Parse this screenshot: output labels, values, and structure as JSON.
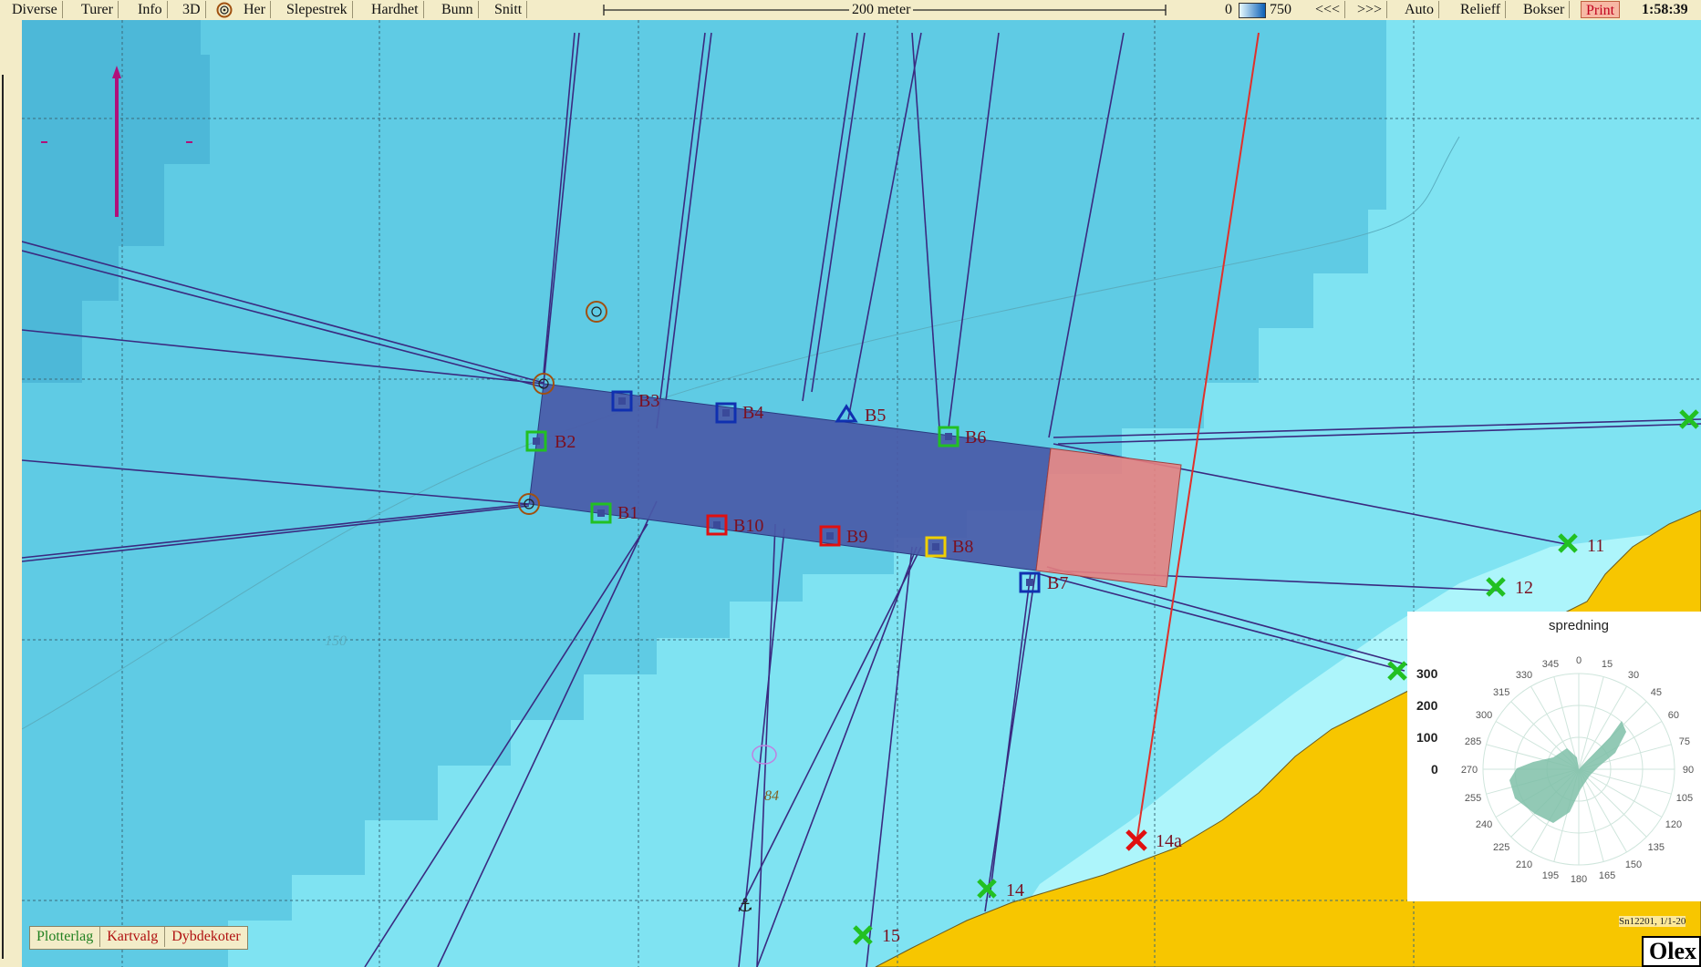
{
  "toolbar": {
    "buttons": [
      "Diverse",
      "Turer",
      "Info",
      "3D",
      "Her",
      "Slepestrek",
      "Hardhet",
      "Bunn",
      "Snitt"
    ],
    "scale_label": "200 meter",
    "depth_min": "0",
    "depth_max": "750",
    "right_buttons": [
      "<<<",
      ">>>",
      "Auto",
      "Relieff",
      "Bokser",
      "Print"
    ],
    "clock": "1:58:39"
  },
  "bottom_tabs": [
    "Plotterlag",
    "Kartvalg",
    "Dybdekoter"
  ],
  "map": {
    "depth_labels": [
      "150",
      "84"
    ],
    "waypoints_square": [
      {
        "label": "B2",
        "color": "#22c022"
      },
      {
        "label": "B3",
        "color": "#1030b0"
      },
      {
        "label": "B4",
        "color": "#1030b0"
      },
      {
        "label": "B6",
        "color": "#22c022"
      },
      {
        "label": "B1",
        "color": "#22c022"
      },
      {
        "label": "B10",
        "color": "#e01010"
      },
      {
        "label": "B9",
        "color": "#e01010"
      },
      {
        "label": "B8",
        "color": "#f0d000"
      },
      {
        "label": "B7",
        "color": "#1030b0"
      }
    ],
    "waypoint_triangle": {
      "label": "B5",
      "color": "#1030b0"
    },
    "x_marks": [
      {
        "label": "11",
        "color": "#22c022"
      },
      {
        "label": "12",
        "color": "#22c022"
      },
      {
        "label": "14a",
        "color": "#e01010"
      },
      {
        "label": "14",
        "color": "#22c022"
      },
      {
        "label": "15",
        "color": "#22c022"
      }
    ],
    "credit": "Sn12201, 1/1-20",
    "brand": "Olex"
  },
  "rose": {
    "title": "spredning",
    "radial_labels": [
      "300",
      "200",
      "100",
      "0"
    ],
    "angle_labels": [
      "0",
      "15",
      "30",
      "45",
      "60",
      "75",
      "90",
      "105",
      "120",
      "135",
      "150",
      "165",
      "180",
      "195",
      "210",
      "225",
      "240",
      "255",
      "270",
      "285",
      "300",
      "315",
      "330",
      "345"
    ]
  },
  "colors": {
    "deep": "#5fcbe4",
    "mid": "#7fe3f2",
    "shallow": "#adf5fb",
    "land": "#f7c600",
    "cage_fill": "#4a5aa8",
    "cage_red": "#e88080",
    "track": "#3a2a80",
    "red_track": "#e0302a"
  }
}
